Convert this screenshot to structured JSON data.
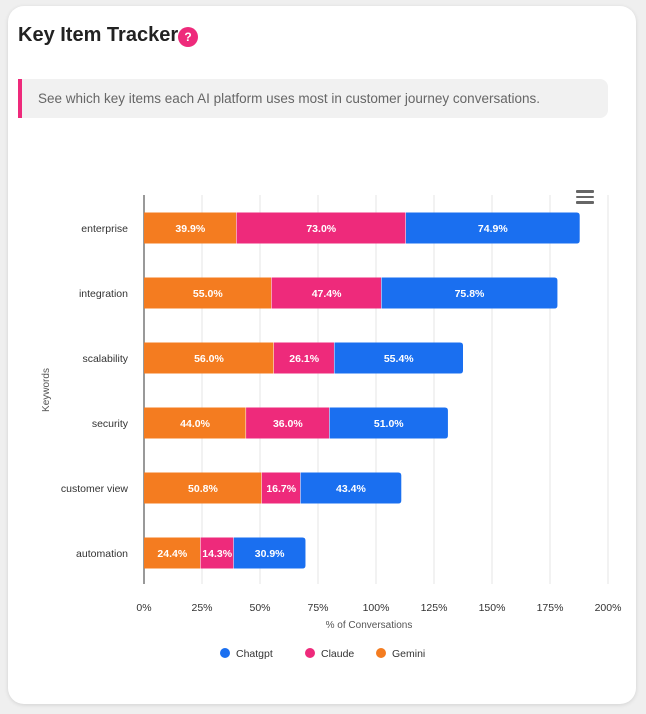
{
  "header": {
    "title": "Key Item Tracker",
    "help_label": "?",
    "description": "See which key items each AI platform uses most in customer journey conversations."
  },
  "toolbar": {
    "menu_icon": "hamburger-menu-icon"
  },
  "colors": {
    "chatgpt": "#1a6ff0",
    "claude": "#ee2a7b",
    "gemini": "#f47c20",
    "accent": "#ee2a7b"
  },
  "chart_data": {
    "type": "bar",
    "orientation": "horizontal",
    "stacked": true,
    "categories": [
      "enterprise",
      "integration",
      "scalability",
      "security",
      "customer view",
      "automation"
    ],
    "series": [
      {
        "name": "Gemini",
        "color": "#f47c20",
        "values": [
          39.9,
          55.0,
          56.0,
          44.0,
          50.8,
          24.4
        ]
      },
      {
        "name": "Claude",
        "color": "#ee2a7b",
        "values": [
          73.0,
          47.4,
          26.1,
          36.0,
          16.7,
          14.3
        ]
      },
      {
        "name": "Chatgpt",
        "color": "#1a6ff0",
        "values": [
          74.9,
          75.8,
          55.4,
          51.0,
          43.4,
          30.9
        ]
      }
    ],
    "xlabel": "% of Conversations",
    "ylabel": "Keywords",
    "xlim": [
      0,
      200
    ],
    "xticks": [
      "0%",
      "25%",
      "50%",
      "75%",
      "100%",
      "125%",
      "150%",
      "175%",
      "200%"
    ],
    "data_labels": true,
    "grid": "vertical",
    "legend": [
      "Chatgpt",
      "Claude",
      "Gemini"
    ],
    "legend_position": "bottom"
  }
}
